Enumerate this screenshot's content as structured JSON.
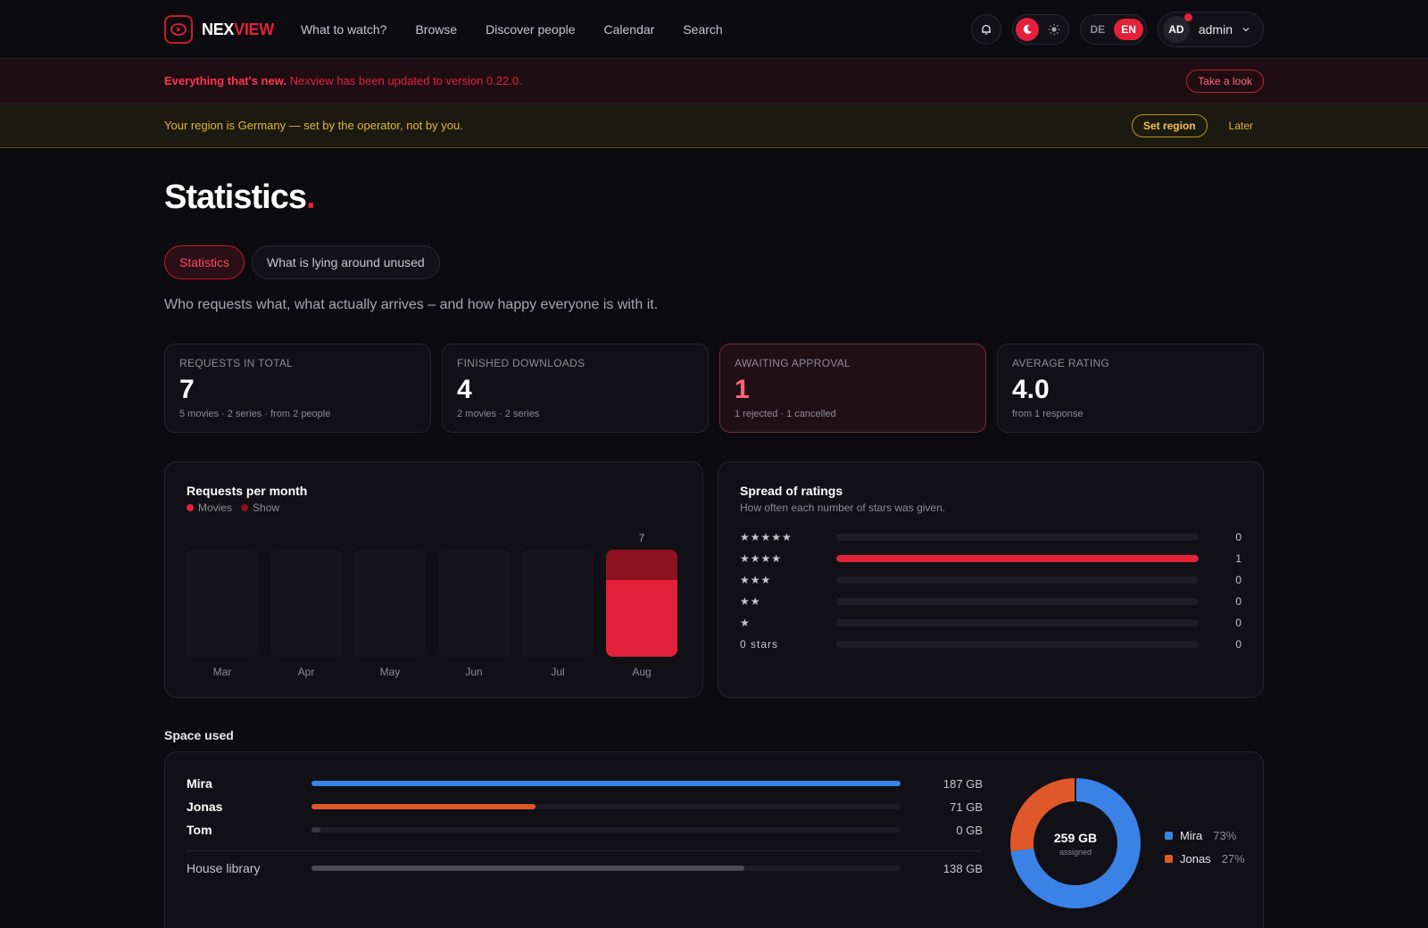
{
  "nav": {
    "logo_part1": "NEX",
    "logo_part2": "VIEW",
    "links": [
      "What to watch?",
      "Browse",
      "Discover people",
      "Calendar",
      "Search"
    ],
    "lang_de": "DE",
    "lang_en": "EN",
    "avatar_initials": "AD",
    "username": "admin"
  },
  "update_banner": {
    "headline": "Everything that's new.",
    "text": "Nexview has been updated to version 0.22.0.",
    "button": "Take a look"
  },
  "region_banner": {
    "text": "Your region is Germany — set by the operator, not by you.",
    "button": "Set region",
    "later": "Later"
  },
  "page": {
    "title": "Statistics",
    "title_dot": ".",
    "tabs": [
      "Statistics",
      "What is lying around unused"
    ],
    "subtitle": "Who requests what, what actually arrives – and how happy everyone is with it."
  },
  "stats": [
    {
      "label": "REQUESTS IN TOTAL",
      "value": "7",
      "sub": "5 movies · 2 series · from 2 people"
    },
    {
      "label": "FINISHED DOWNLOADS",
      "value": "4",
      "sub": "2 movies · 2 series"
    },
    {
      "label": "AWAITING APPROVAL",
      "value": "1",
      "sub": "1 rejected · 1 cancelled"
    },
    {
      "label": "AVERAGE RATING",
      "value": "4.0",
      "sub": "from 1 response"
    }
  ],
  "requests_chart": {
    "title": "Requests per month",
    "legend": [
      {
        "name": "Movies",
        "color": "#e3213b"
      },
      {
        "name": "Show",
        "color": "#8e1120"
      }
    ],
    "chart_data": {
      "type": "bar",
      "categories": [
        "Mar",
        "Apr",
        "May",
        "Jun",
        "Jul",
        "Aug"
      ],
      "series": [
        {
          "name": "Movies",
          "values": [
            0,
            0,
            0,
            0,
            0,
            5
          ]
        },
        {
          "name": "Show",
          "values": [
            0,
            0,
            0,
            0,
            0,
            2
          ]
        }
      ],
      "totals": [
        0,
        0,
        0,
        0,
        0,
        7
      ],
      "ylim": [
        0,
        7
      ]
    }
  },
  "ratings": {
    "title": "Spread of ratings",
    "subtitle": "How often each number of stars was given.",
    "rows": [
      {
        "label": "★★★★★",
        "count": 0
      },
      {
        "label": "★★★★",
        "count": 1
      },
      {
        "label": "★★★",
        "count": 0
      },
      {
        "label": "★★",
        "count": 0
      },
      {
        "label": "★",
        "count": 0
      },
      {
        "label": "0 stars",
        "count": 0
      }
    ]
  },
  "space": {
    "title": "Space used",
    "users": [
      {
        "name": "Mira",
        "value": "187 GB",
        "fraction": 1.0,
        "color": "#3b82e6"
      },
      {
        "name": "Jonas",
        "value": "71 GB",
        "fraction": 0.38,
        "color": "#e0582a"
      },
      {
        "name": "Tom",
        "value": "0 GB",
        "fraction": 0.015,
        "color": "#3a3944"
      }
    ],
    "library": {
      "name": "House library",
      "value": "138 GB",
      "fraction": 0.735,
      "color": "#3a3944"
    },
    "donut": {
      "total": "259 GB",
      "caption": "assigned",
      "slices": [
        {
          "name": "Mira",
          "pct": "73%",
          "value": 73,
          "color": "#3b82e6"
        },
        {
          "name": "Jonas",
          "pct": "27%",
          "value": 27,
          "color": "#e0582a"
        }
      ]
    }
  }
}
